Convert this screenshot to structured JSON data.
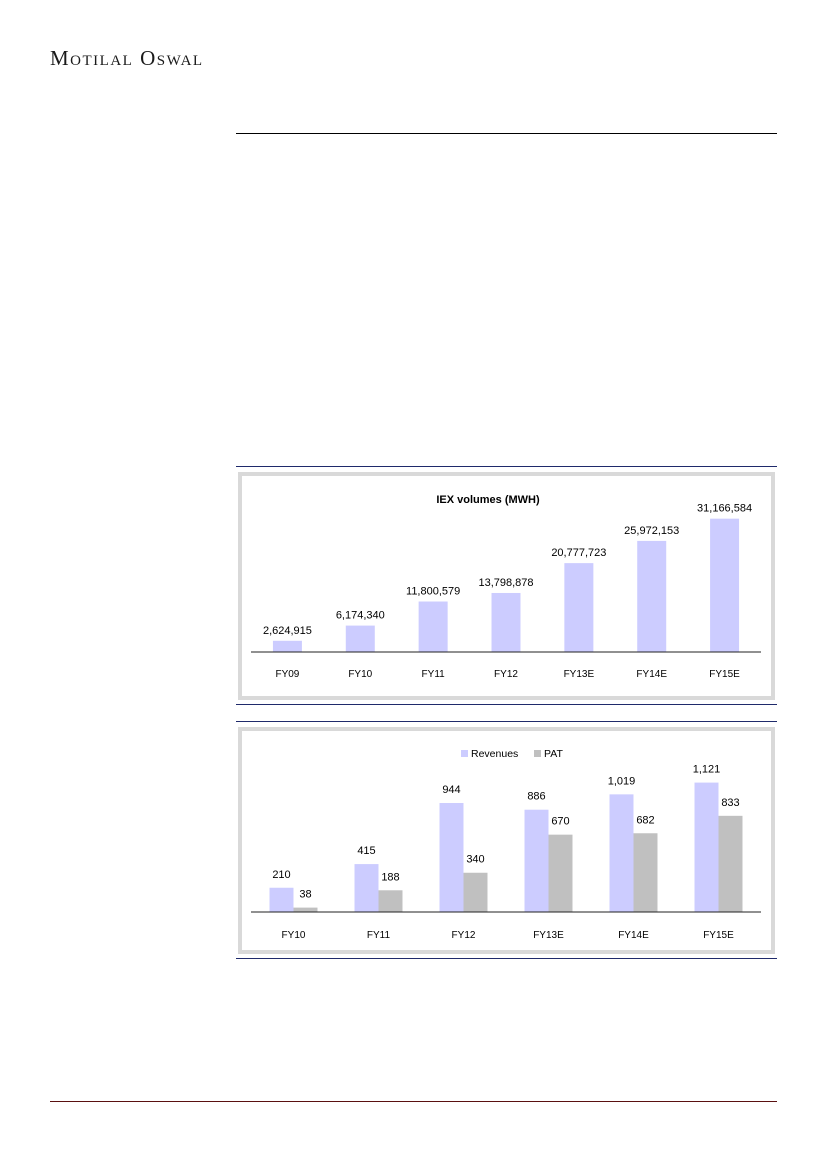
{
  "header": {
    "brand": "Motilal Oswal"
  },
  "colors": {
    "revenue": "#ccccff",
    "pat": "#c0c0c0",
    "axis": "#222222",
    "rule_top": "#000000",
    "rule_bottom": "#5a1010",
    "frame": "#1f2a6b"
  },
  "chart_data": [
    {
      "type": "bar",
      "title": "IEX volumes (MWH)",
      "categories": [
        "FY09",
        "FY10",
        "FY11",
        "FY12",
        "FY13E",
        "FY14E",
        "FY15E"
      ],
      "values": [
        2624915,
        6174340,
        11800579,
        13798878,
        20777723,
        25972153,
        31166584
      ],
      "data_labels": [
        "2,624,915",
        "6,174,340",
        "11,800,579",
        "13,798,878",
        "20,777,723",
        "25,972,153",
        "31,166,584"
      ],
      "ylim": [
        0,
        36000000
      ],
      "grid": false,
      "legend": "none"
    },
    {
      "type": "bar",
      "categories": [
        "FY10",
        "FY11",
        "FY12",
        "FY13E",
        "FY14E",
        "FY15E"
      ],
      "series": [
        {
          "name": "Revenues",
          "values": [
            210,
            415,
            944,
            886,
            1019,
            1121
          ],
          "data_labels": [
            "210",
            "415",
            "944",
            "886",
            "1,019",
            "1,121"
          ]
        },
        {
          "name": "PAT",
          "values": [
            38,
            188,
            340,
            670,
            682,
            833
          ],
          "data_labels": [
            "38",
            "188",
            "340",
            "670",
            "682",
            "833"
          ]
        }
      ],
      "ylim": [
        0,
        1230
      ],
      "grid": false,
      "legend": "top-center"
    }
  ]
}
